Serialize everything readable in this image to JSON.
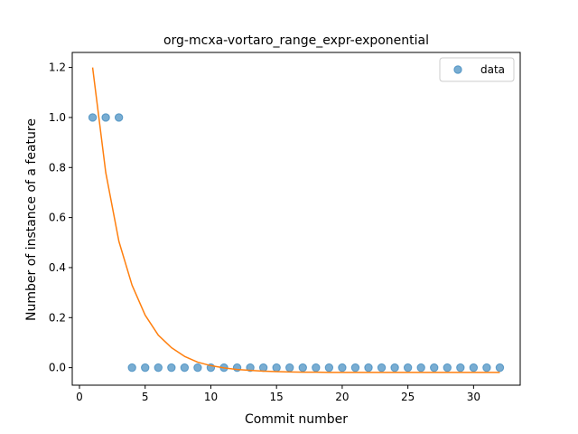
{
  "chart_data": {
    "type": "scatter",
    "title": "org-mcxa-vortaro_range_expr-exponential",
    "xlabel": "Commit number",
    "ylabel": "Number of instance of a feature",
    "xlim": [
      -0.55,
      33.55
    ],
    "ylim": [
      -0.07,
      1.26
    ],
    "xticks": [
      0,
      5,
      10,
      15,
      20,
      25,
      30
    ],
    "yticks": [
      0.0,
      0.2,
      0.4,
      0.6,
      0.8,
      1.0,
      1.2
    ],
    "xtick_labels": [
      "0",
      "5",
      "10",
      "15",
      "20",
      "25",
      "30"
    ],
    "ytick_labels": [
      "0.0",
      "0.2",
      "0.4",
      "0.6",
      "0.8",
      "1.0",
      "1.2"
    ],
    "grid": false,
    "legend_position": "top-right",
    "series": [
      {
        "name": "data",
        "kind": "scatter",
        "color": "#1f77b4",
        "x": [
          1,
          2,
          3,
          4,
          5,
          6,
          7,
          8,
          9,
          10,
          11,
          12,
          13,
          14,
          15,
          16,
          17,
          18,
          19,
          20,
          21,
          22,
          23,
          24,
          25,
          26,
          27,
          28,
          29,
          30,
          31,
          32
        ],
        "y": [
          1,
          1,
          1,
          0,
          0,
          0,
          0,
          0,
          0,
          0,
          0,
          0,
          0,
          0,
          0,
          0,
          0,
          0,
          0,
          0,
          0,
          0,
          0,
          0,
          0,
          0,
          0,
          0,
          0,
          0,
          0,
          0
        ]
      },
      {
        "kind": "line",
        "color": "#ff7f0e",
        "x": [
          1,
          2,
          3,
          4,
          5,
          6,
          7,
          8,
          9,
          10,
          11,
          12,
          13,
          14,
          15,
          16,
          17,
          18,
          19,
          20,
          21,
          22,
          23,
          24,
          25,
          26,
          27,
          28,
          29,
          30,
          31,
          32
        ],
        "y": [
          1.2,
          0.78,
          0.505,
          0.33,
          0.21,
          0.13,
          0.08,
          0.045,
          0.022,
          0.008,
          -0.001,
          -0.007,
          -0.011,
          -0.014,
          -0.016,
          -0.017,
          -0.018,
          -0.018,
          -0.019,
          -0.019,
          -0.019,
          -0.019,
          -0.019,
          -0.019,
          -0.019,
          -0.019,
          -0.019,
          -0.019,
          -0.019,
          -0.019,
          -0.019,
          -0.019
        ]
      }
    ]
  }
}
